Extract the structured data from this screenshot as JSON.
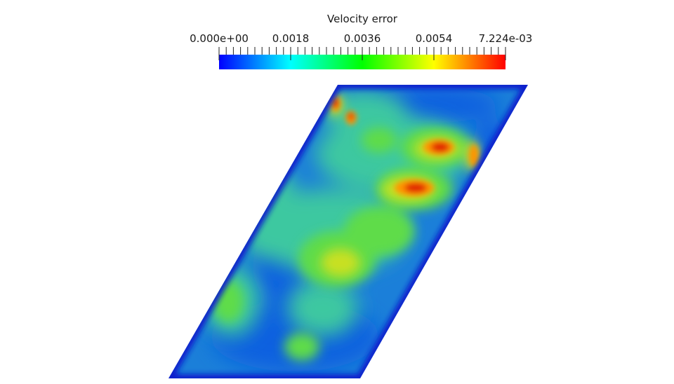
{
  "colorbar": {
    "title": "Velocity error",
    "labels": [
      "0.000e+00",
      "0.0018",
      "0.0036",
      "0.0054",
      "7.224e-03"
    ],
    "range": [
      0.0,
      0.007224
    ],
    "colormap": [
      "#0000ff",
      "#00ffff",
      "#00ff00",
      "#ffff00",
      "#ff0000"
    ]
  },
  "field": {
    "colors": {
      "background": "#1b7fd9",
      "boundary": "#0a1fcc",
      "low": "#1060e0",
      "mid": "#3cc8a0",
      "green": "#5fdc4a",
      "yellow": "#c8e020",
      "orange": "#ff9400",
      "hot": "#e02000"
    }
  }
}
